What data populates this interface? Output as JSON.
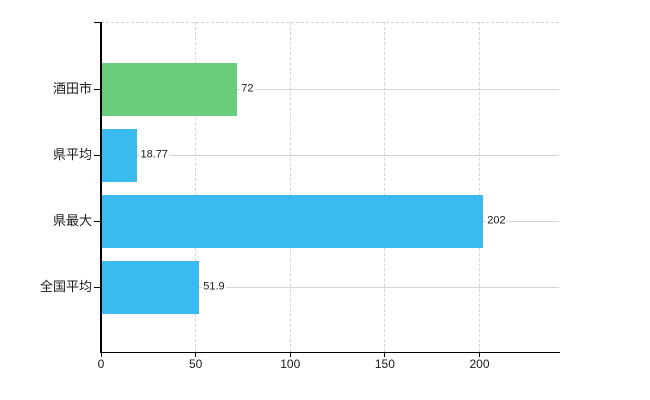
{
  "chart_data": {
    "type": "bar",
    "orientation": "horizontal",
    "title": "",
    "xlabel": "",
    "ylabel": "",
    "categories": [
      "酒田市",
      "県平均",
      "県最大",
      "全国平均"
    ],
    "values": [
      72,
      18.77,
      202,
      51.9
    ],
    "value_labels": [
      "72",
      "18.77",
      "202",
      "51.9"
    ],
    "bar_colors": [
      "#69cd7b",
      "#3abbf0",
      "#3abbf0",
      "#3abbf0"
    ],
    "xlim": [
      0,
      242
    ],
    "xticks": [
      0,
      50,
      100,
      150,
      200
    ],
    "xtick_labels": [
      "0",
      "50",
      "100",
      "150",
      "200"
    ],
    "grid": true,
    "legend_position": "none",
    "colors": {
      "background": "#ffffff",
      "grid": "#d4d4d4",
      "axis": "#000000",
      "text": "#1a1a1a",
      "accent_green": "#69cd7b",
      "accent_blue": "#3abbf0"
    }
  }
}
